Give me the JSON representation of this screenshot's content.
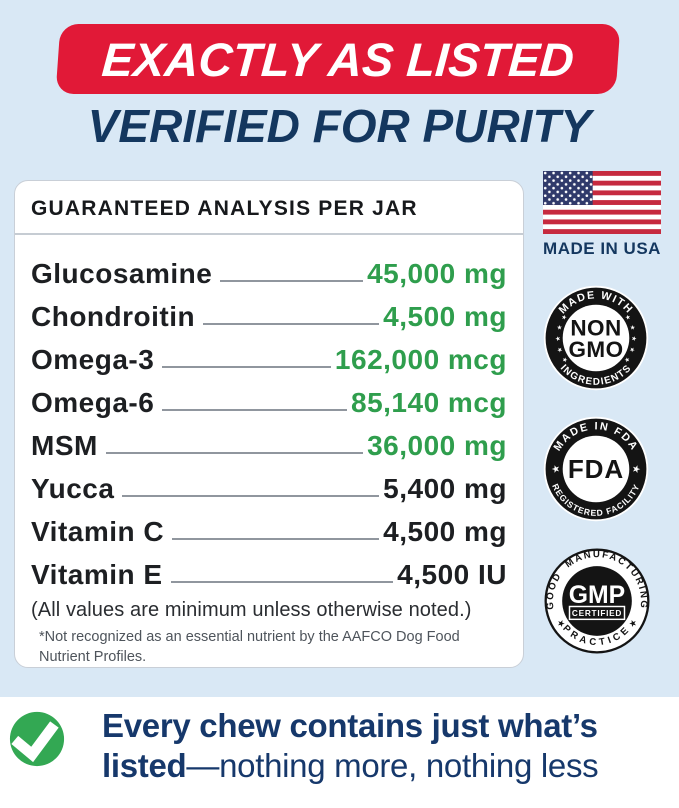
{
  "header": {
    "banner": "EXACTLY AS LISTED",
    "subtitle": "VERIFIED FOR PURITY"
  },
  "analysis": {
    "title": "GUARANTEED ANALYSIS PER JAR",
    "rows": [
      {
        "name": "Glucosamine",
        "value": "45,000 mg",
        "highlight": true
      },
      {
        "name": "Chondroitin",
        "value": "4,500 mg",
        "highlight": true
      },
      {
        "name": "Omega-3",
        "value": "162,000 mcg",
        "highlight": true
      },
      {
        "name": "Omega-6",
        "value": "85,140 mcg",
        "highlight": true
      },
      {
        "name": "MSM",
        "value": "36,000 mg",
        "highlight": true
      },
      {
        "name": "Yucca",
        "value": "5,400 mg",
        "highlight": false
      },
      {
        "name": "Vitamin C",
        "value": "4,500 mg",
        "highlight": false
      },
      {
        "name": "Vitamin E",
        "value": "4,500 IU",
        "highlight": false
      }
    ],
    "note": "(All values are minimum unless otherwise noted.)",
    "footnote": "*Not recognized as an essential nutrient by the AAFCO Dog Food Nutrient Profiles."
  },
  "badges": {
    "made_in_usa": "MADE IN USA",
    "non_gmo": {
      "top": "MADE WITH",
      "center_line1": "NON",
      "center_line2": "GMO",
      "bottom": "INGREDIENTS"
    },
    "fda": {
      "top": "MADE IN FDA",
      "center": "FDA",
      "bottom": "REGISTERED FACILITY"
    },
    "gmp": {
      "top": "GOOD MANUFACTURING",
      "center": "GMP",
      "center_sub": "CERTIFIED",
      "bottom": "PRACTICE"
    }
  },
  "footer": {
    "line1": "Every chew contains just what’s",
    "line2_bold": "listed",
    "line2_regular": "—nothing more, nothing less"
  },
  "colors": {
    "background": "#d9e8f5",
    "banner_red": "#e11937",
    "navy": "#14375f",
    "value_green": "#2f9e4d",
    "check_green": "#33a853",
    "flag_red": "#c62a3f",
    "flag_blue": "#303a6b"
  }
}
